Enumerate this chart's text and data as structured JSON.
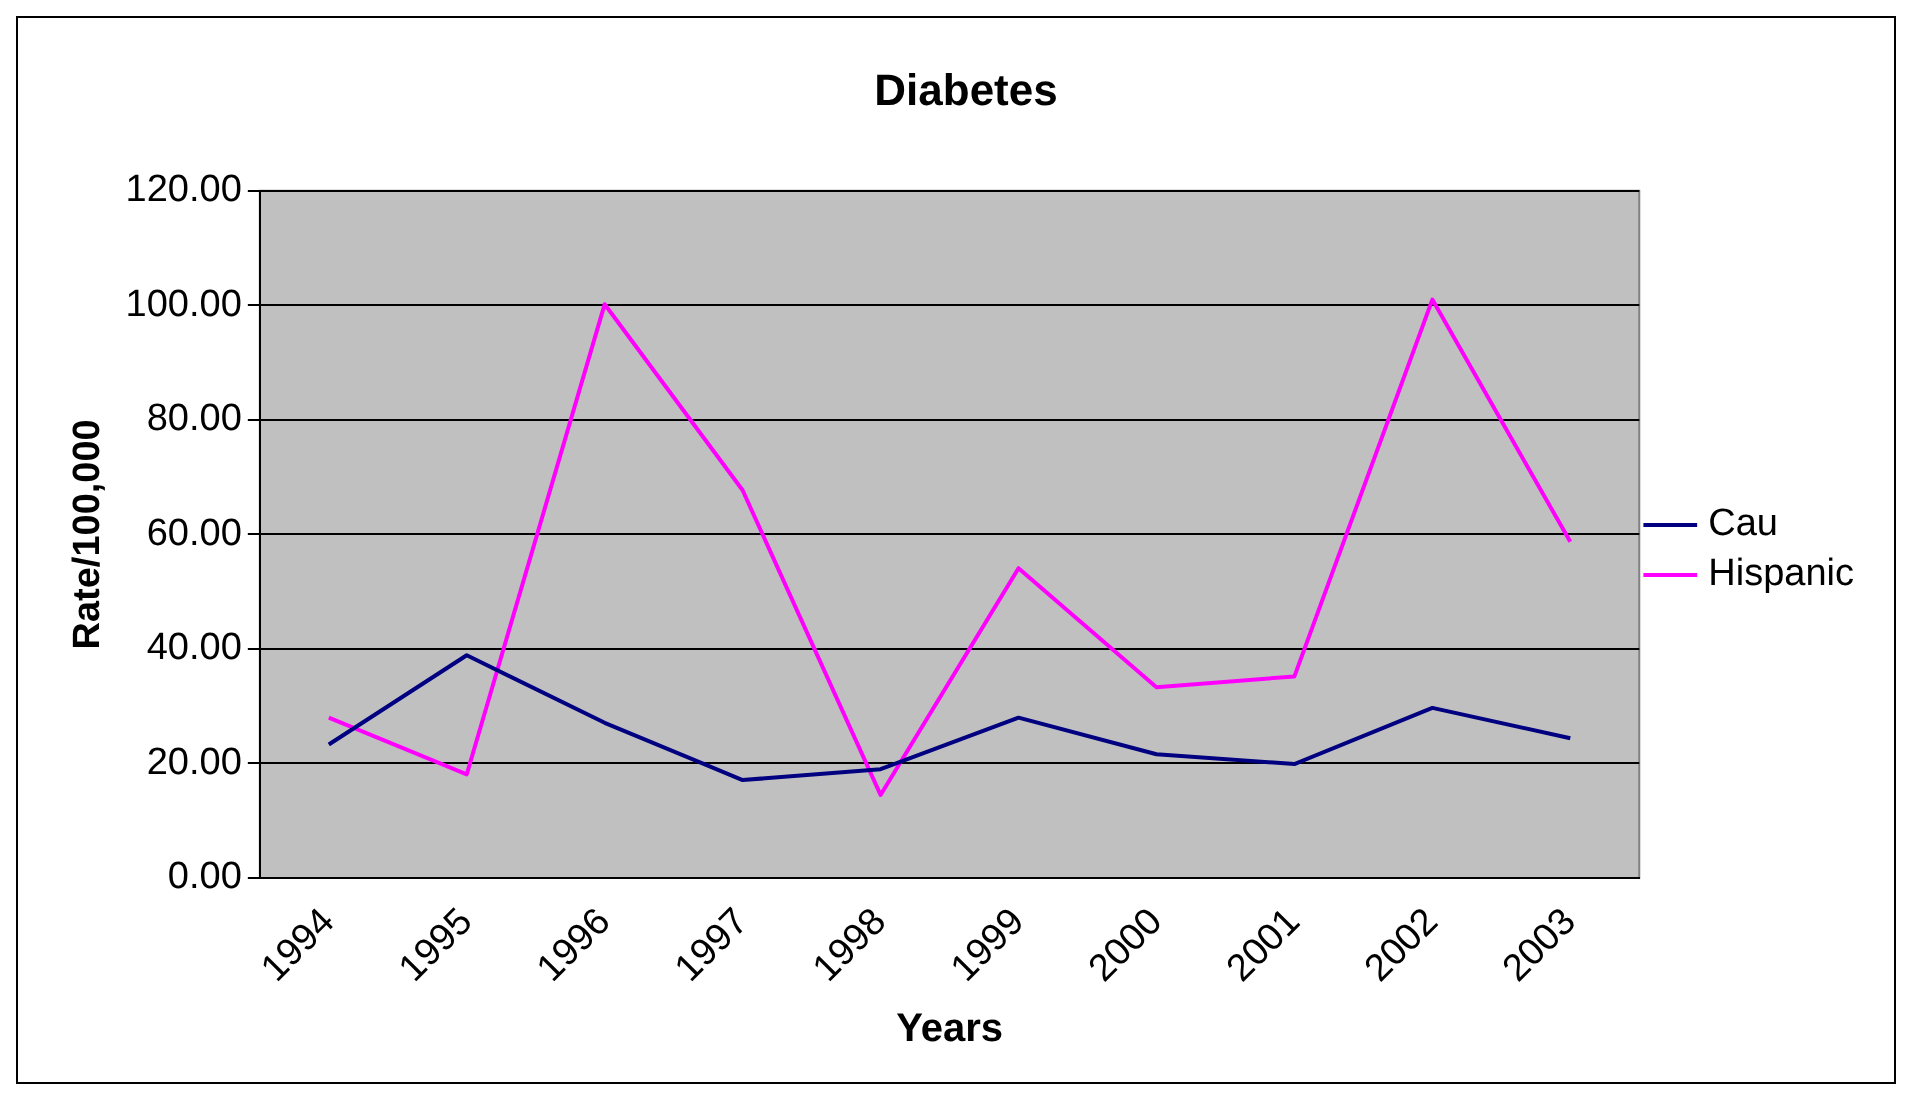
{
  "chart_data": {
    "type": "line",
    "title": "Diabetes",
    "xlabel": "Years",
    "ylabel": "Rate/100,000",
    "categories": [
      "1994",
      "1995",
      "1996",
      "1997",
      "1998",
      "1999",
      "2000",
      "2001",
      "2002",
      "2003"
    ],
    "series": [
      {
        "name": "Cau",
        "color": "#000080",
        "values": [
          23.3,
          38.9,
          27.1,
          17.1,
          19.0,
          28.0,
          21.6,
          19.9,
          29.7,
          24.4
        ]
      },
      {
        "name": "Hispanic",
        "color": "#ff00ff",
        "values": [
          28.0,
          18.1,
          100.2,
          67.7,
          14.5,
          54.1,
          33.3,
          35.2,
          101.0,
          58.7
        ]
      }
    ],
    "ylim": [
      0,
      120
    ],
    "yticks": [
      {
        "value": 0,
        "label": "0.00"
      },
      {
        "value": 20,
        "label": "20.00"
      },
      {
        "value": 40,
        "label": "40.00"
      },
      {
        "value": 60,
        "label": "60.00"
      },
      {
        "value": 80,
        "label": "80.00"
      },
      {
        "value": 100,
        "label": "100.00"
      },
      {
        "value": 120,
        "label": "120.00"
      }
    ],
    "grid": "y",
    "legend": "right",
    "marker": "none",
    "line_style": "solid"
  }
}
